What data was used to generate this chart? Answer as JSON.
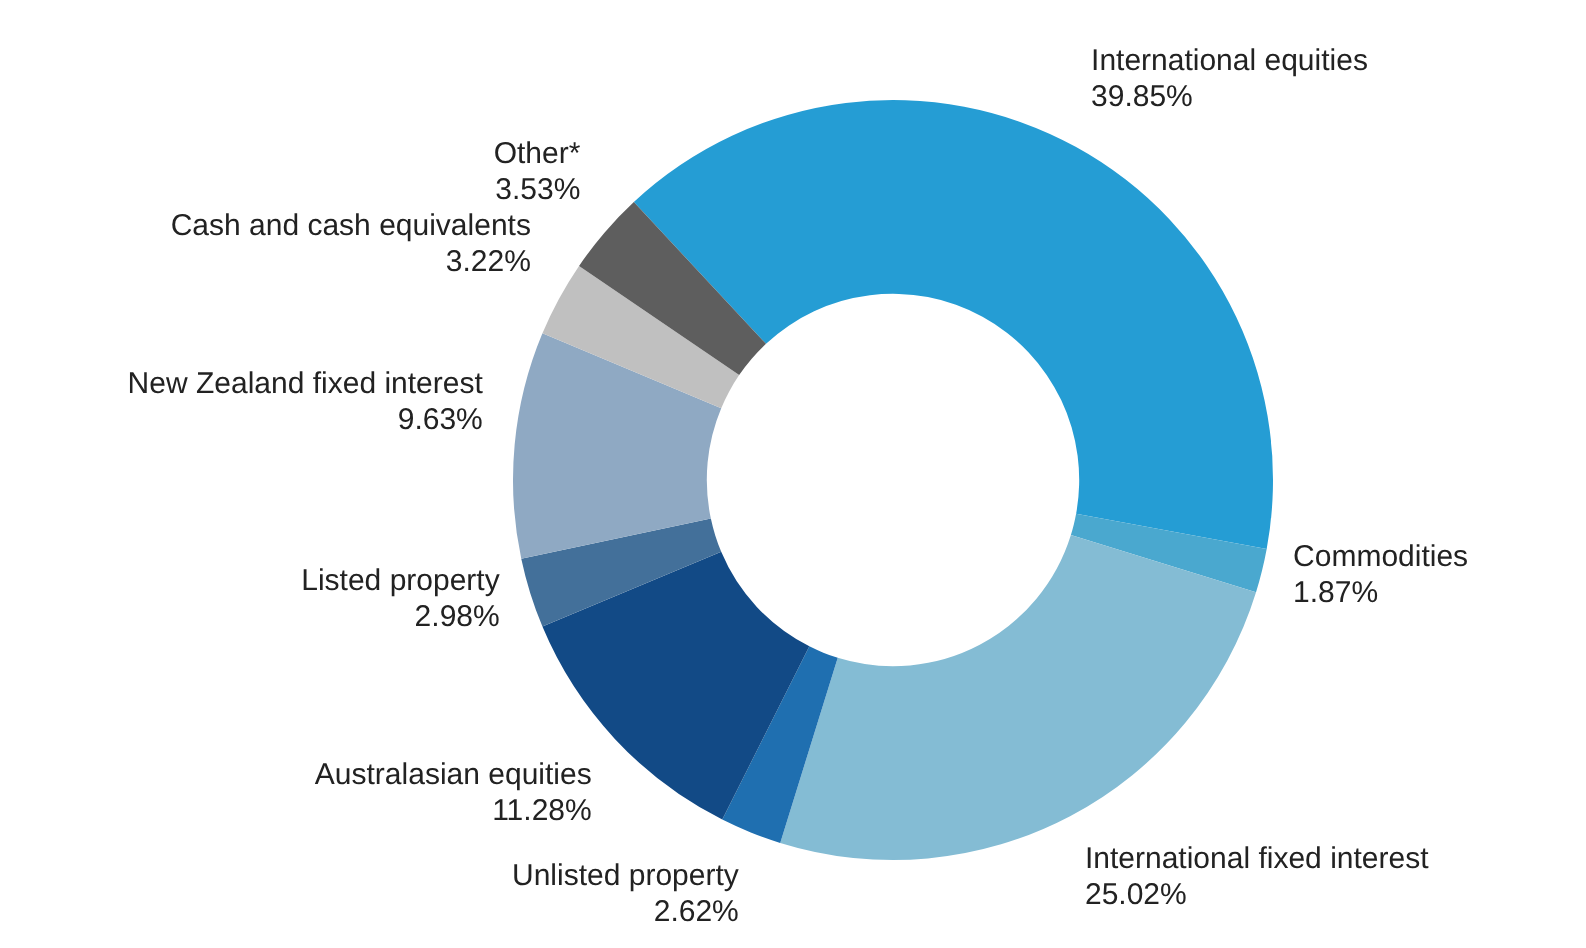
{
  "chart_data": {
    "type": "donut",
    "categories": [
      "International equities",
      "Commodities",
      "International fixed interest",
      "Unlisted property",
      "Australasian equities",
      "Listed property",
      "New Zealand fixed interest",
      "Cash and cash equivalents",
      "Other*"
    ],
    "values": [
      39.85,
      1.87,
      25.02,
      2.62,
      11.28,
      2.98,
      9.63,
      3.22,
      3.53
    ],
    "value_labels": [
      "39.85%",
      "1.87%",
      "25.02%",
      "2.62%",
      "11.28%",
      "2.98%",
      "9.63%",
      "3.22%",
      "3.53%"
    ],
    "colors": [
      "#259dd4",
      "#4aa8cf",
      "#84bcd4",
      "#1f6fb0",
      "#124a86",
      "#43709a",
      "#8fa9c3",
      "#c0c0c0",
      "#5e5e5e"
    ],
    "legend": false
  }
}
